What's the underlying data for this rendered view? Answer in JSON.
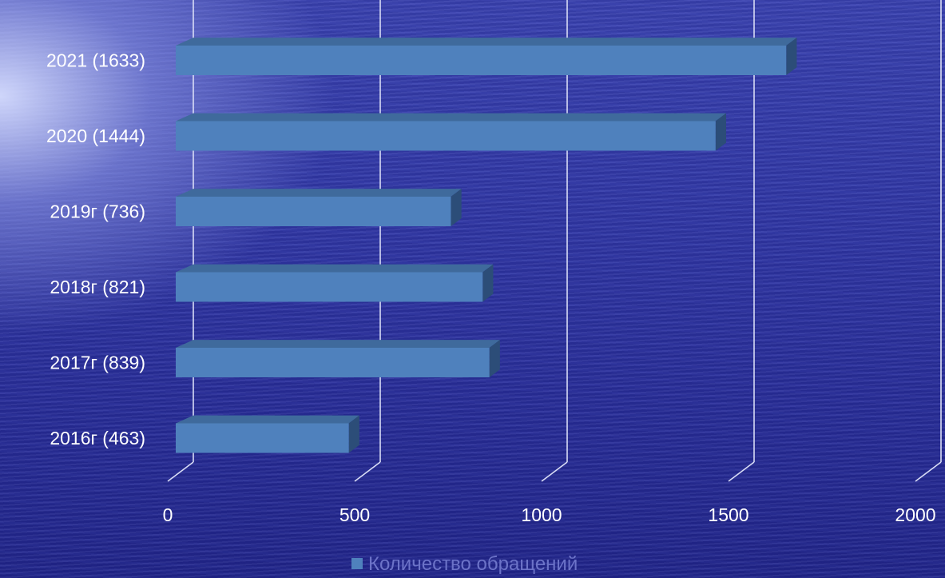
{
  "chart_data": {
    "type": "bar",
    "orientation": "horizontal",
    "three_d": true,
    "categories": [
      "2021 (1633)",
      "2020 (1444)",
      "2019г (736)",
      "2018г (821)",
      "2017г (839)",
      "2016г (463)"
    ],
    "series": [
      {
        "name": "Количество обращений",
        "values": [
          1633,
          1444,
          736,
          821,
          839,
          463
        ],
        "color": "#4f81bd"
      }
    ],
    "x_ticks": [
      "0",
      "500",
      "1000",
      "1500",
      "2000"
    ],
    "xlim": [
      0,
      2000
    ],
    "grid": true,
    "legend_position": "bottom"
  },
  "colors": {
    "bar_front": "#4f81bd",
    "bar_top": "#3f6a9c",
    "bar_side": "#2c4d78",
    "grid": "#d8dcf5",
    "text": "#ffffff",
    "legend_text": "#6c73c8"
  }
}
